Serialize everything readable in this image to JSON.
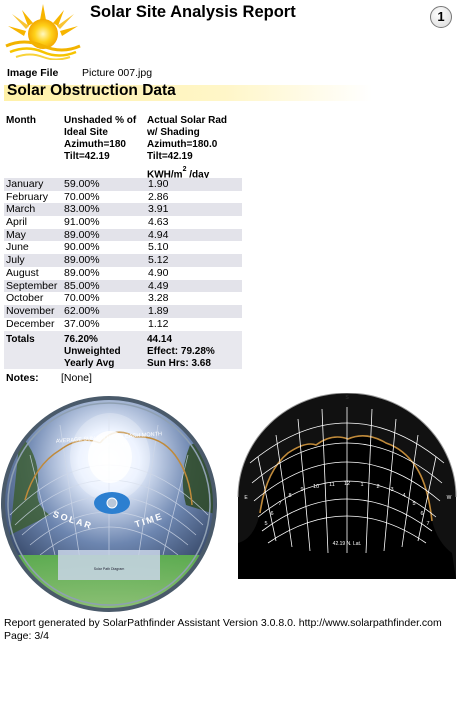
{
  "header": {
    "title": "Solar Site Analysis Report",
    "page_badge": "1"
  },
  "image_file": {
    "label": "Image File",
    "value": "Picture 007.jpg"
  },
  "section_title": "Solar Obstruction Data",
  "table": {
    "headers": {
      "month": "Month",
      "col1": [
        "Unshaded % of",
        "Ideal Site",
        "Azimuth=180",
        "Tilt=42.19"
      ],
      "col2": [
        "Actual Solar Rad",
        "w/ Shading",
        "Azimuth=180.0",
        "Tilt=42.19"
      ],
      "unit": "KWH/m",
      "unit_sup": "2",
      "unit_suffix": " /day"
    },
    "rows": [
      {
        "month": "January",
        "unshaded": "59.00%",
        "rad": "1.90"
      },
      {
        "month": "February",
        "unshaded": "70.00%",
        "rad": "2.86"
      },
      {
        "month": "March",
        "unshaded": "83.00%",
        "rad": "3.91"
      },
      {
        "month": "April",
        "unshaded": "91.00%",
        "rad": "4.63"
      },
      {
        "month": "May",
        "unshaded": "89.00%",
        "rad": "4.94"
      },
      {
        "month": "June",
        "unshaded": "90.00%",
        "rad": "5.10"
      },
      {
        "month": "July",
        "unshaded": "89.00%",
        "rad": "5.12"
      },
      {
        "month": "August",
        "unshaded": "89.00%",
        "rad": "4.90"
      },
      {
        "month": "September",
        "unshaded": "85.00%",
        "rad": "4.49"
      },
      {
        "month": "October",
        "unshaded": "70.00%",
        "rad": "3.28"
      },
      {
        "month": "November",
        "unshaded": "62.00%",
        "rad": "1.89"
      },
      {
        "month": "December",
        "unshaded": "37.00%",
        "rad": "1.12"
      }
    ],
    "totals": {
      "label": "Totals",
      "unshaded": "76.20%",
      "rad": "44.14",
      "unweighted": "Unweighted",
      "effect": "Effect: 79.28%",
      "yearly_avg": "Yearly Avg",
      "sun_hrs": "Sun Hrs: 3.68"
    }
  },
  "notes": {
    "label": "Notes:",
    "value": "[None]"
  },
  "photo": {
    "arc_text": "AVERAGE SUN PATH FOR EACH MONTH",
    "arc_text_2": "FOR 37° N LAT.",
    "solar_text": "SOLAR",
    "time_text": "TIME",
    "diagram_title": "Solar Path Diagram"
  },
  "diagram": {
    "lat_label": "42.19 N. Lat.",
    "compass": {
      "s": "S",
      "e": "E",
      "w": "W"
    },
    "hour_labels": [
      "5",
      "6",
      "7",
      "8",
      "9",
      "10",
      "11",
      "12",
      "1",
      "2",
      "3",
      "4",
      "5",
      "6",
      "7"
    ]
  },
  "footer": {
    "line1": "Report generated by SolarPathfinder Assistant Version 3.0.8.0.  http://www.solarpathfinder.com",
    "line2": "Page: 3/4"
  },
  "colors": {
    "accent_yellow": "#f5c400",
    "section_bar": "#fff1a8",
    "row_shade": "#e3e3ea",
    "shade_trace": "#c08a3a"
  }
}
